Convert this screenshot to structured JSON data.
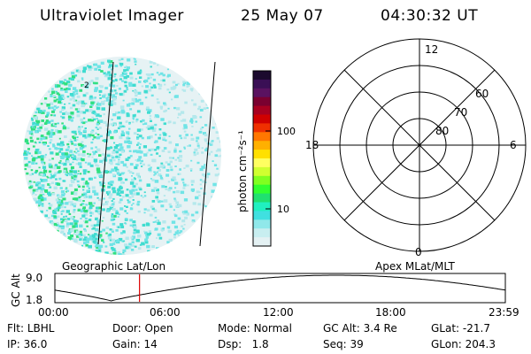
{
  "header": {
    "instrument": "Ultraviolet Imager",
    "date": "25 May 07",
    "time": "04:30:32 UT"
  },
  "image_panel": {
    "marker_label": "2",
    "footer_label": "Geographic Lat/Lon"
  },
  "colorbar": {
    "label": "photon cm⁻²s⁻¹",
    "ticks": [
      "100",
      "10"
    ],
    "colors": [
      "#1b0a2e",
      "#3a0f55",
      "#5a1260",
      "#7a0030",
      "#a80020",
      "#d00000",
      "#ef3000",
      "#ff7700",
      "#ffb000",
      "#ffe000",
      "#ffff60",
      "#d0ff30",
      "#80ff20",
      "#30ff30",
      "#20e070",
      "#20f0c0",
      "#40e0e0",
      "#90e8ea",
      "#c8eef0",
      "#e4f1f3"
    ]
  },
  "polar_plot": {
    "footer_label": "Apex MLat/MLT",
    "mlt_labels": {
      "top": "12",
      "bottom": "0",
      "left": "18",
      "right": "6"
    },
    "lat_labels": [
      "60",
      "70",
      "80"
    ]
  },
  "timeline": {
    "ylabel": "GC Alt",
    "y_ticks": [
      "9.0",
      "1.8"
    ],
    "x_ticks": [
      "00:00",
      "06:00",
      "12:00",
      "18:00",
      "23:59"
    ],
    "current_time_hours": 4.51,
    "line_color": "#dd0000"
  },
  "info": {
    "row1": [
      {
        "label": "Flt:",
        "value": "LBHL"
      },
      {
        "label": "Door:",
        "value": "Open"
      },
      {
        "label": "Mode:",
        "value": "Normal"
      },
      {
        "label": "GC Alt:",
        "value": "3.4 Re"
      },
      {
        "label": "GLat:",
        "value": "-21.7"
      }
    ],
    "row2": [
      {
        "label": "IP:",
        "value": "36.0"
      },
      {
        "label": "Gain:",
        "value": "14"
      },
      {
        "label": "Dsp:",
        "value": "1.8"
      },
      {
        "label": "Seq:",
        "value": "39"
      },
      {
        "label": "GLon:",
        "value": "204.3"
      }
    ]
  }
}
